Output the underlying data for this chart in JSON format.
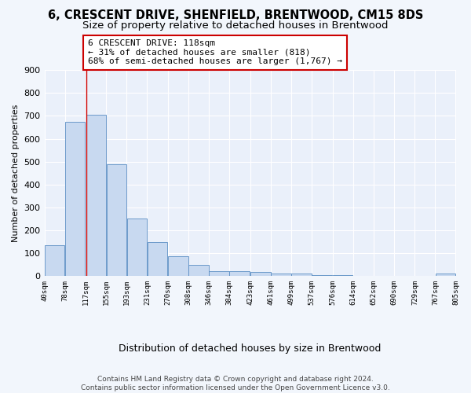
{
  "title": "6, CRESCENT DRIVE, SHENFIELD, BRENTWOOD, CM15 8DS",
  "subtitle": "Size of property relative to detached houses in Brentwood",
  "xlabel": "Distribution of detached houses by size in Brentwood",
  "ylabel": "Number of detached properties",
  "bar_left_edges": [
    40,
    78,
    117,
    155,
    193,
    231,
    270,
    308,
    346,
    384,
    423,
    461,
    499,
    537,
    576,
    614,
    652,
    690,
    729,
    767
  ],
  "bar_heights": [
    135,
    675,
    705,
    490,
    252,
    150,
    88,
    50,
    23,
    20,
    18,
    11,
    10,
    4,
    3,
    2,
    1,
    1,
    0,
    10
  ],
  "bin_width": 38,
  "bar_color": "#c8d9f0",
  "bar_edge_color": "#5b8ec4",
  "subject_line_x": 118,
  "subject_line_color": "#cc0000",
  "annotation_text": "6 CRESCENT DRIVE: 118sqm\n← 31% of detached houses are smaller (818)\n68% of semi-detached houses are larger (1,767) →",
  "annotation_box_color": "#cc0000",
  "annotation_fill_color": "#ffffff",
  "ylim": [
    0,
    900
  ],
  "yticks": [
    0,
    100,
    200,
    300,
    400,
    500,
    600,
    700,
    800,
    900
  ],
  "xtick_labels": [
    "40sqm",
    "78sqm",
    "117sqm",
    "155sqm",
    "193sqm",
    "231sqm",
    "270sqm",
    "308sqm",
    "346sqm",
    "384sqm",
    "423sqm",
    "461sqm",
    "499sqm",
    "537sqm",
    "576sqm",
    "614sqm",
    "652sqm",
    "690sqm",
    "729sqm",
    "767sqm",
    "805sqm"
  ],
  "xtick_positions": [
    40,
    78,
    117,
    155,
    193,
    231,
    270,
    308,
    346,
    384,
    423,
    461,
    499,
    537,
    576,
    614,
    652,
    690,
    729,
    767,
    805
  ],
  "footnote": "Contains HM Land Registry data © Crown copyright and database right 2024.\nContains public sector information licensed under the Open Government Licence v3.0.",
  "bg_color": "#eaf0fa",
  "fig_bg_color": "#f2f6fc",
  "grid_color": "#ffffff",
  "title_fontsize": 10.5,
  "subtitle_fontsize": 9.5,
  "ylabel_fontsize": 8,
  "xlabel_fontsize": 9,
  "annotation_fontsize": 8,
  "footnote_fontsize": 6.5
}
